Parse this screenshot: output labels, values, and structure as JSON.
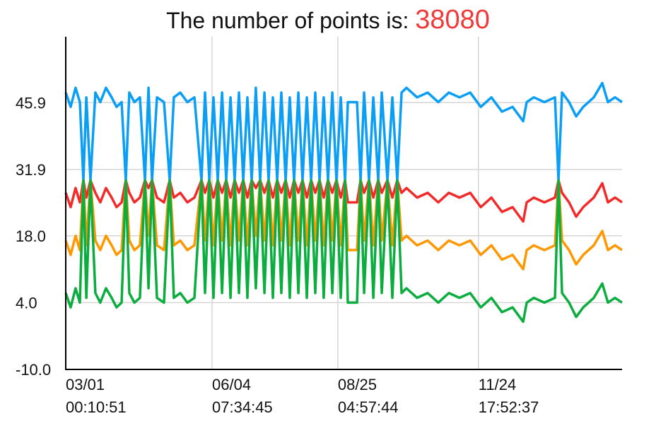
{
  "chart_data": {
    "type": "line",
    "title": "The number of points is:",
    "point_count": 38080,
    "x": [
      0,
      3.2,
      6.4,
      9.2,
      11.5,
      13.4,
      16.1,
      19.3,
      22.5,
      26.2,
      29.9,
      33.1,
      36.4,
      39.1,
      41.4,
      44.7,
      48.3,
      51.6,
      53.9,
      56.2,
      59.4,
      64.0,
      67.7,
      70.4,
      74.6,
      79.2,
      83.8,
      88.4,
      90.7,
      93.5,
      96.2,
      99.0,
      101.8,
      104.5,
      107.3,
      110.0,
      112.8,
      115.6,
      118.3,
      121.1,
      123.8,
      126.6,
      129.4,
      132.1,
      134.9,
      137.7,
      140.4,
      143.2,
      145.9,
      148.7,
      151.5,
      154.2,
      157.0,
      159.8,
      162.5,
      165.3,
      168.0,
      170.8,
      173.6,
      176.3,
      179.1,
      181.9,
      183.7,
      189.7,
      192.0,
      194.3,
      197.5,
      200.3,
      203.5,
      205.8,
      209.5,
      212.7,
      215.9,
      218.7,
      221.9,
      228.8,
      235.7,
      242.6,
      249.5,
      256.4,
      263.4,
      270.3,
      277.2,
      284.1,
      291.0,
      297.9,
      300.2,
      304.8,
      311.7,
      318.6,
      320.9,
      323.2,
      327.8,
      332.4,
      337.0,
      343.9,
      349.4,
      353.1,
      357.7,
      362.3
    ],
    "series": [
      {
        "color": "#0a9ef5",
        "values": [
          48,
          45,
          49,
          46,
          29.6,
          47,
          29.6,
          48,
          46,
          49,
          47,
          45,
          46,
          29.6,
          48,
          46,
          47,
          29.6,
          49,
          29.6,
          47,
          46,
          29.6,
          47,
          48,
          46,
          47,
          29.6,
          48,
          29.6,
          47,
          29.6,
          48,
          29.6,
          47,
          29.6,
          48,
          29.6,
          47,
          29.6,
          49,
          29.6,
          48,
          29.6,
          47,
          29.6,
          48,
          29.6,
          47,
          29.6,
          48,
          29.6,
          47,
          29.6,
          48,
          29.6,
          47,
          29.6,
          48,
          29.6,
          47,
          29.6,
          46,
          46,
          29.6,
          48,
          29.6,
          47,
          29.6,
          48,
          29.6,
          47,
          29.6,
          48,
          49,
          47,
          48,
          46,
          48,
          47,
          48,
          45,
          47,
          44,
          45,
          42,
          46,
          47,
          46,
          47,
          29.6,
          48,
          46,
          43,
          45,
          47,
          50,
          46,
          47,
          46
        ]
      },
      {
        "color": "#f42a2a",
        "values": [
          27,
          24,
          28,
          25,
          29.6,
          26,
          29.6,
          27,
          25,
          28,
          26,
          24,
          25,
          29.6,
          27,
          25,
          26,
          29.6,
          28,
          29.6,
          26,
          25,
          29.6,
          26,
          27,
          25,
          26,
          29.6,
          27,
          29.6,
          26,
          29.6,
          27,
          29.6,
          26,
          29.6,
          27,
          29.6,
          26,
          29.6,
          28,
          29.6,
          27,
          29.6,
          26,
          29.6,
          27,
          29.6,
          26,
          29.6,
          27,
          29.6,
          26,
          29.6,
          27,
          29.6,
          26,
          29.6,
          27,
          29.6,
          26,
          29.6,
          25,
          25,
          29.6,
          27,
          29.6,
          26,
          29.6,
          27,
          29.6,
          26,
          29.6,
          27,
          28,
          26,
          27,
          25,
          27,
          26,
          27,
          24,
          26,
          23,
          24,
          21,
          25,
          26,
          25,
          26,
          29.6,
          27,
          25,
          22,
          24,
          26,
          29,
          25,
          26,
          25
        ]
      },
      {
        "color": "#ff9800",
        "values": [
          17,
          14,
          18,
          15,
          29.6,
          16,
          29.6,
          17,
          15,
          18,
          16,
          14,
          15,
          29.6,
          17,
          15,
          16,
          29.6,
          18,
          29.6,
          16,
          15,
          29.6,
          16,
          17,
          15,
          16,
          29.6,
          17,
          29.6,
          16,
          29.6,
          17,
          29.6,
          16,
          29.6,
          17,
          29.6,
          16,
          29.6,
          18,
          29.6,
          17,
          29.6,
          16,
          29.6,
          17,
          29.6,
          16,
          29.6,
          17,
          29.6,
          16,
          29.6,
          17,
          29.6,
          16,
          29.6,
          17,
          29.6,
          16,
          29.6,
          15,
          15,
          29.6,
          17,
          29.6,
          16,
          29.6,
          17,
          29.6,
          16,
          29.6,
          17,
          18,
          16,
          17,
          15,
          17,
          16,
          17,
          14,
          16,
          13,
          14,
          11,
          15,
          16,
          15,
          16,
          29.6,
          17,
          15,
          12,
          14,
          16,
          19,
          15,
          16,
          15
        ]
      },
      {
        "color": "#0bad3e",
        "values": [
          6,
          3,
          7,
          4,
          29.6,
          5,
          29.6,
          6,
          4,
          7,
          5,
          3,
          4,
          29.6,
          6,
          4,
          5,
          29.6,
          7,
          29.6,
          5,
          4,
          29.6,
          5,
          6,
          4,
          5,
          29.6,
          6,
          29.6,
          5,
          29.6,
          6,
          29.6,
          5,
          29.6,
          6,
          29.6,
          5,
          29.6,
          7,
          29.6,
          6,
          29.6,
          5,
          29.6,
          6,
          29.6,
          5,
          29.6,
          6,
          29.6,
          5,
          29.6,
          6,
          29.6,
          5,
          29.6,
          6,
          29.6,
          5,
          29.6,
          4,
          4,
          29.6,
          6,
          29.6,
          5,
          29.6,
          6,
          29.6,
          5,
          29.6,
          6,
          7,
          5,
          6,
          4,
          6,
          5,
          6,
          3,
          5,
          2,
          3,
          0,
          4,
          5,
          4,
          5,
          29.6,
          6,
          4,
          1,
          3,
          5,
          8,
          4,
          5,
          4
        ]
      }
    ],
    "xlim": [
      0,
      362.3
    ],
    "xticks": [
      {
        "value": 0,
        "label": "03/01\n00:10:51"
      },
      {
        "value": 95.31,
        "label": "06/04\n07:34:45"
      },
      {
        "value": 177.2,
        "label": "08/25\n04:57:44"
      },
      {
        "value": 268.74,
        "label": "11/24\n17:52:37"
      }
    ],
    "ylim": [
      -10,
      59.7
    ],
    "yticks": [
      {
        "value": -10,
        "label": "-10.0"
      },
      {
        "value": 4,
        "label": "4.0"
      },
      {
        "value": 18,
        "label": "18.0"
      },
      31.9,
      45.9
    ],
    "grid": true,
    "title_count_color": "#f03a3a"
  }
}
